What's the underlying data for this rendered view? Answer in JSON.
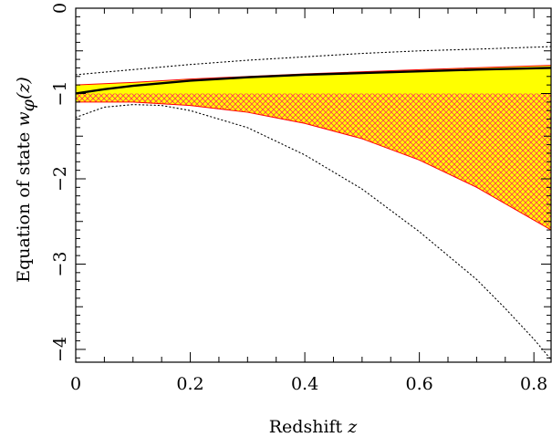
{
  "chart_data": {
    "type": "line",
    "title": "",
    "xlabel": "Redshift",
    "xlabel_var": "z",
    "ylabel": "Equation of state",
    "ylabel_var": "w",
    "ylabel_sub": "φ",
    "ylabel_arg": "(z)",
    "xlim": [
      0,
      0.83
    ],
    "ylim": [
      -4.15,
      0
    ],
    "x_ticks": [
      0,
      0.2,
      0.4,
      0.6,
      0.8
    ],
    "x_tick_labels": [
      "0",
      "0.2",
      "0.4",
      "0.6",
      "0.8"
    ],
    "y_ticks": [
      0,
      -1,
      -2,
      -3,
      -4
    ],
    "y_tick_labels": [
      "0",
      "−1",
      "−2",
      "−3",
      "−4"
    ],
    "grid": false,
    "colors": {
      "fill_yellow": "#ffff00",
      "hatch": "#ff3355",
      "edge": "#ff0000",
      "line": "#000000"
    },
    "series": [
      {
        "style": "dotted",
        "x": [
          0,
          0.1,
          0.2,
          0.3,
          0.4,
          0.5,
          0.6,
          0.7,
          0.83
        ],
        "y": [
          -0.78,
          -0.72,
          -0.66,
          -0.61,
          -0.57,
          -0.53,
          -0.5,
          -0.48,
          -0.45
        ]
      },
      {
        "style": "dotted",
        "x": [
          0,
          0.05,
          0.1,
          0.15,
          0.2,
          0.3,
          0.4,
          0.5,
          0.6,
          0.7,
          0.75,
          0.8,
          0.83
        ],
        "y": [
          -1.28,
          -1.16,
          -1.13,
          -1.14,
          -1.2,
          -1.4,
          -1.72,
          -2.12,
          -2.62,
          -3.18,
          -3.52,
          -3.88,
          -4.12
        ]
      },
      {
        "style": "solid",
        "x": [
          0,
          0.05,
          0.1,
          0.2,
          0.3,
          0.4,
          0.5,
          0.6,
          0.7,
          0.83
        ],
        "y": [
          -1.0,
          -0.95,
          -0.91,
          -0.85,
          -0.81,
          -0.78,
          -0.76,
          -0.74,
          -0.72,
          -0.7
        ]
      }
    ],
    "bands": [
      {
        "fill": "yellow",
        "x": [
          0,
          0.1,
          0.2,
          0.4,
          0.6,
          0.83
        ],
        "upper": [
          -0.9,
          -0.87,
          -0.83,
          -0.77,
          -0.72,
          -0.67
        ],
        "lower": [
          -1.0,
          -1.0,
          -1.0,
          -1.0,
          -1.0,
          -1.0
        ]
      },
      {
        "fill": "hatch",
        "x": [
          0,
          0.1,
          0.2,
          0.3,
          0.4,
          0.5,
          0.6,
          0.7,
          0.83
        ],
        "upper": [
          -1.0,
          -1.0,
          -1.0,
          -1.0,
          -1.0,
          -1.0,
          -1.0,
          -1.0,
          -1.0
        ],
        "lower": [
          -1.1,
          -1.1,
          -1.14,
          -1.22,
          -1.35,
          -1.53,
          -1.78,
          -2.1,
          -2.6
        ]
      }
    ]
  }
}
